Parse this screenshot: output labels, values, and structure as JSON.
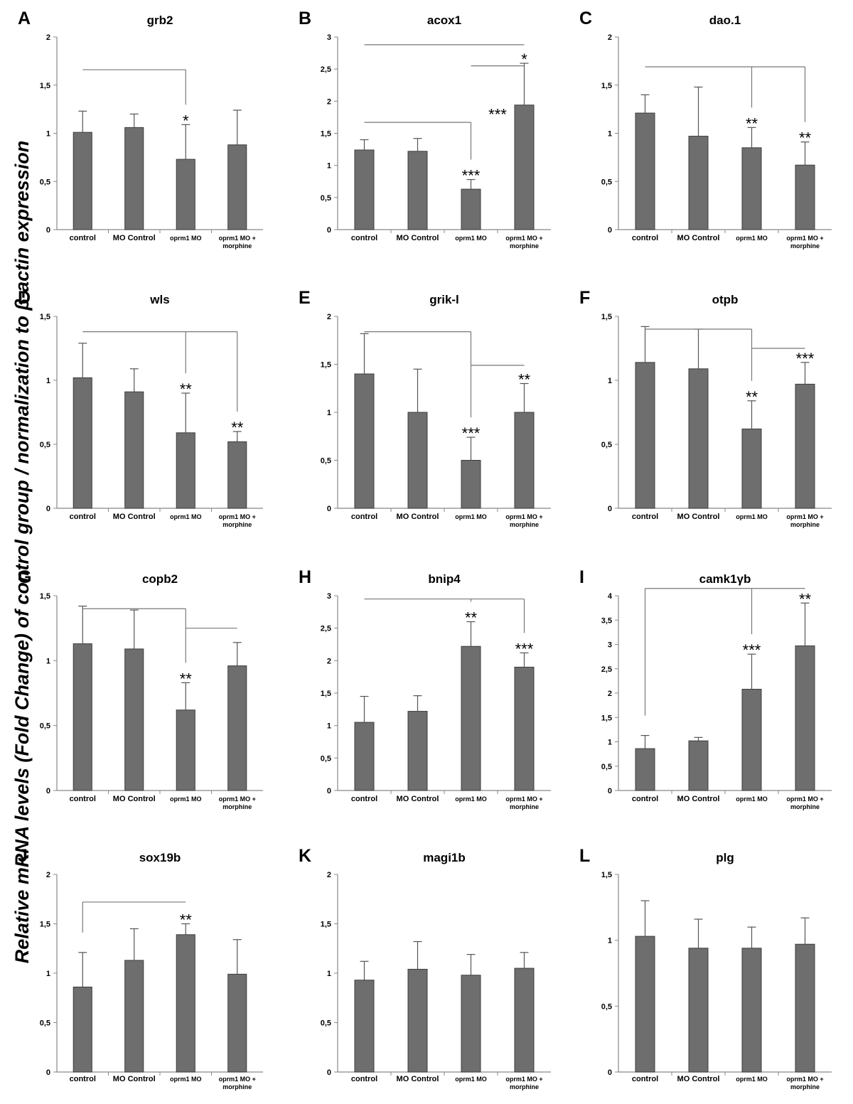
{
  "ylabel": "Relative mRNA levels (Fold Change) of control group / normalization to β-actin expression",
  "categories": [
    "control",
    "MO Control",
    "oprm1 MO",
    "oprm1 MO + morphine"
  ],
  "colors": {
    "bar": "#6e6e6e",
    "bar_edge": "#3c3c3c",
    "axis": "#888888",
    "bracket": "#777777"
  },
  "chart_data": [
    {
      "type": "bar",
      "panel": "A",
      "title": "grb2",
      "ylim": [
        0,
        2
      ],
      "yticks": [
        "0",
        "0,5",
        "1",
        "1,5",
        "2"
      ],
      "yticks_values": [
        0,
        0.5,
        1,
        1.5,
        2
      ],
      "values": [
        1.01,
        1.06,
        0.73,
        0.88
      ],
      "errors": [
        0.22,
        0.14,
        0.36,
        0.36
      ],
      "significance": [
        {
          "bar": 2,
          "label": "*"
        }
      ],
      "brackets": [
        {
          "from": 0,
          "to": 2,
          "y": 1.66
        }
      ]
    },
    {
      "type": "bar",
      "panel": "B",
      "title": "acox1",
      "ylim": [
        0,
        3
      ],
      "yticks": [
        "0",
        "0,5",
        "1",
        "1,5",
        "2",
        "2,5",
        "3"
      ],
      "yticks_values": [
        0,
        0.5,
        1,
        1.5,
        2,
        2.5,
        3
      ],
      "values": [
        1.24,
        1.22,
        0.63,
        1.94
      ],
      "errors": [
        0.16,
        0.2,
        0.15,
        0.65
      ],
      "significance": [
        {
          "bar": 2,
          "label": "***"
        },
        {
          "bar": 3,
          "label": "*"
        },
        {
          "bar": 2.5,
          "y": 1.8,
          "label": "***"
        }
      ],
      "brackets": [
        {
          "from": 0,
          "to": 2,
          "y": 1.67
        },
        {
          "from": 2,
          "to": 3,
          "y": 2.55
        },
        {
          "from": 0,
          "to": 3,
          "y": 2.88
        }
      ]
    },
    {
      "type": "bar",
      "panel": "C",
      "title": "dao.1",
      "ylim": [
        0,
        2
      ],
      "yticks": [
        "0",
        "0,5",
        "1",
        "1,5",
        "2"
      ],
      "yticks_values": [
        0,
        0.5,
        1,
        1.5,
        2
      ],
      "values": [
        1.21,
        0.97,
        0.85,
        0.67
      ],
      "errors": [
        0.19,
        0.51,
        0.21,
        0.24
      ],
      "significance": [
        {
          "bar": 2,
          "label": "**"
        },
        {
          "bar": 3,
          "label": "**"
        }
      ],
      "brackets": [
        {
          "from": 0,
          "to": 3,
          "y": 1.69,
          "drops": [
            2,
            3
          ]
        }
      ]
    },
    {
      "type": "bar",
      "panel": "D",
      "title": "wls",
      "ylim": [
        0,
        1.5
      ],
      "yticks": [
        "0",
        "0,5",
        "1",
        "1,5"
      ],
      "yticks_values": [
        0,
        0.5,
        1,
        1.5
      ],
      "values": [
        1.02,
        0.91,
        0.59,
        0.52
      ],
      "errors": [
        0.27,
        0.18,
        0.31,
        0.08
      ],
      "significance": [
        {
          "bar": 2,
          "label": "**"
        },
        {
          "bar": 3,
          "label": "**"
        }
      ],
      "brackets": [
        {
          "from": 0,
          "to": 3,
          "y": 1.38,
          "drops": [
            2,
            3
          ]
        }
      ]
    },
    {
      "type": "bar",
      "panel": "E",
      "title": "grik-l",
      "ylim": [
        0,
        2
      ],
      "yticks": [
        "0",
        "0,5",
        "1",
        "1,5",
        "2"
      ],
      "yticks_values": [
        0,
        0.5,
        1,
        1.5,
        2
      ],
      "values": [
        1.4,
        1.0,
        0.5,
        1.0
      ],
      "errors": [
        0.42,
        0.45,
        0.24,
        0.3
      ],
      "significance": [
        {
          "bar": 2,
          "label": "***"
        },
        {
          "bar": 3,
          "label": "**"
        }
      ],
      "brackets": [
        {
          "from": 0,
          "to": 2,
          "y": 1.84
        },
        {
          "from": 2,
          "to": 3,
          "y": 1.49
        }
      ]
    },
    {
      "type": "bar",
      "panel": "F",
      "title": "otpb",
      "ylim": [
        0,
        1.5
      ],
      "yticks": [
        "0",
        "0,5",
        "1",
        "1,5"
      ],
      "yticks_values": [
        0,
        0.5,
        1,
        1.5
      ],
      "values": [
        1.14,
        1.09,
        0.62,
        0.97
      ],
      "errors": [
        0.28,
        0.31,
        0.22,
        0.17
      ],
      "significance": [
        {
          "bar": 2,
          "label": "**"
        },
        {
          "bar": 3,
          "label": "***"
        }
      ],
      "brackets": [
        {
          "from": 0,
          "to": 2,
          "y": 1.4
        },
        {
          "from": 2,
          "to": 3,
          "y": 1.25
        }
      ]
    },
    {
      "type": "bar",
      "panel": "G",
      "title": "copb2",
      "ylim": [
        0,
        1.5
      ],
      "yticks": [
        "0",
        "0,5",
        "1",
        "1,5"
      ],
      "yticks_values": [
        0,
        0.5,
        1,
        1.5
      ],
      "values": [
        1.13,
        1.09,
        0.62,
        0.96
      ],
      "errors": [
        0.29,
        0.3,
        0.21,
        0.18
      ],
      "significance": [
        {
          "bar": 2,
          "label": "**"
        }
      ],
      "brackets": [
        {
          "from": 0,
          "to": 2,
          "y": 1.4
        },
        {
          "from": 2,
          "to": 3,
          "y": 1.25
        }
      ]
    },
    {
      "type": "bar",
      "panel": "H",
      "title": "bnip4",
      "ylim": [
        0,
        3
      ],
      "yticks": [
        "0",
        "0,5",
        "1",
        "1,5",
        "2",
        "2,5",
        "3"
      ],
      "yticks_values": [
        0,
        0.5,
        1,
        1.5,
        2,
        2.5,
        3
      ],
      "values": [
        1.05,
        1.22,
        2.22,
        1.9
      ],
      "errors": [
        0.4,
        0.24,
        0.38,
        0.22
      ],
      "significance": [
        {
          "bar": 2,
          "label": "**"
        },
        {
          "bar": 3,
          "label": "***"
        }
      ],
      "brackets": [
        {
          "from": 0,
          "to": 3,
          "y": 2.95,
          "drops": [
            2,
            3
          ]
        }
      ]
    },
    {
      "type": "bar",
      "panel": "I",
      "title": "camk1γb",
      "ylim": [
        0,
        4
      ],
      "yticks": [
        "0",
        "0,5",
        "1",
        "1,5",
        "2",
        "2,5",
        "3",
        "3,5",
        "4"
      ],
      "yticks_values": [
        0,
        0.5,
        1,
        1.5,
        2,
        2.5,
        3,
        3.5,
        4
      ],
      "values": [
        0.86,
        1.02,
        2.08,
        2.97
      ],
      "errors": [
        0.27,
        0.07,
        0.72,
        0.88
      ],
      "significance": [
        {
          "bar": 2,
          "label": "***"
        },
        {
          "bar": 3,
          "label": "**"
        }
      ],
      "brackets": [
        {
          "from": 0,
          "to": 3,
          "y": 4.15,
          "drops": [
            0,
            2,
            3
          ]
        }
      ]
    },
    {
      "type": "bar",
      "panel": "J",
      "title": "sox19b",
      "ylim": [
        0,
        2
      ],
      "yticks": [
        "0",
        "0,5",
        "1",
        "1,5",
        "2"
      ],
      "yticks_values": [
        0,
        0.5,
        1,
        1.5,
        2
      ],
      "values": [
        0.86,
        1.13,
        1.39,
        0.99
      ],
      "errors": [
        0.35,
        0.32,
        0.11,
        0.35
      ],
      "significance": [
        {
          "bar": 2,
          "label": "**"
        }
      ],
      "brackets": [
        {
          "from": 0,
          "to": 2,
          "y": 1.72,
          "drops": [
            0
          ]
        }
      ]
    },
    {
      "type": "bar",
      "panel": "K",
      "title": "magi1b",
      "ylim": [
        0,
        2
      ],
      "yticks": [
        "0",
        "0,5",
        "1",
        "1,5",
        "2"
      ],
      "yticks_values": [
        0,
        0.5,
        1,
        1.5,
        2
      ],
      "values": [
        0.93,
        1.04,
        0.98,
        1.05
      ],
      "errors": [
        0.19,
        0.28,
        0.21,
        0.16
      ],
      "significance": [],
      "brackets": []
    },
    {
      "type": "bar",
      "panel": "L",
      "title": "plg",
      "ylim": [
        0,
        1.5
      ],
      "yticks": [
        "0",
        "0,5",
        "1",
        "1,5"
      ],
      "yticks_values": [
        0,
        0.5,
        1,
        1.5
      ],
      "values": [
        1.03,
        0.94,
        0.94,
        0.97
      ],
      "errors": [
        0.27,
        0.22,
        0.16,
        0.2
      ],
      "significance": [],
      "brackets": []
    }
  ]
}
